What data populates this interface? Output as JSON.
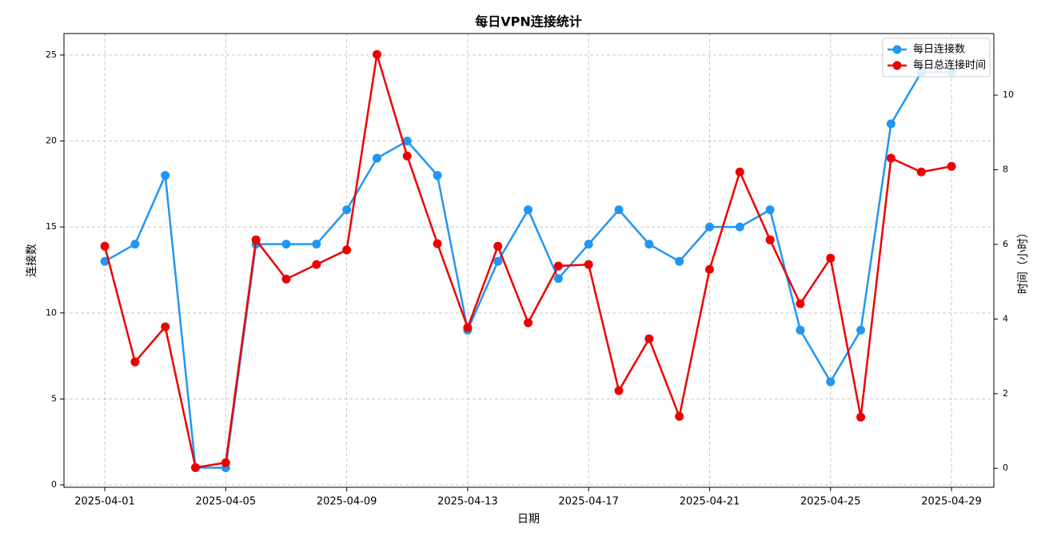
{
  "chart_data": {
    "type": "line",
    "title": "每日VPN连接统计",
    "x_label": "日期",
    "y_label": "连接数",
    "y2_label": "时间（小时）",
    "x": [
      "2025-04-01",
      "2025-04-02",
      "2025-04-03",
      "2025-04-04",
      "2025-04-05",
      "2025-04-06",
      "2025-04-07",
      "2025-04-08",
      "2025-04-09",
      "2025-04-10",
      "2025-04-11",
      "2025-04-12",
      "2025-04-13",
      "2025-04-14",
      "2025-04-15",
      "2025-04-16",
      "2025-04-17",
      "2025-04-18",
      "2025-04-19",
      "2025-04-20",
      "2025-04-21",
      "2025-04-22",
      "2025-04-23",
      "2025-04-24",
      "2025-04-25",
      "2025-04-26",
      "2025-04-27",
      "2025-04-28",
      "2025-04-29"
    ],
    "series": [
      {
        "name": "每日连接数",
        "color": "#2196f3",
        "values": [
          13,
          14,
          18,
          1,
          1,
          14,
          14,
          14,
          16,
          19,
          20,
          18,
          9,
          13,
          16,
          12,
          14,
          16,
          14,
          13,
          15,
          15,
          16,
          9,
          6,
          9,
          21,
          24,
          24
        ]
      },
      {
        "name": "每日总连接时间",
        "color": "#ee0000",
        "axis": "y2",
        "values": [
          5.95,
          2.85,
          3.79,
          0.02,
          0.15,
          6.12,
          5.07,
          5.46,
          5.85,
          11.09,
          8.37,
          6.02,
          3.77,
          5.95,
          3.9,
          5.42,
          5.46,
          2.08,
          3.47,
          1.39,
          5.33,
          7.94,
          6.12,
          4.41,
          5.63,
          1.37,
          8.31,
          7.94,
          8.09
        ]
      }
    ],
    "xlim": [
      "2025-03-30T15:36:00Z",
      "2025-04-30T09:36:00Z"
    ],
    "xticks": [
      "2025-04-01",
      "2025-04-05",
      "2025-04-09",
      "2025-04-13",
      "2025-04-17",
      "2025-04-21",
      "2025-04-25",
      "2025-04-29"
    ],
    "ylim": [
      -0.14,
      26.25
    ],
    "yticks": [
      0,
      5,
      10,
      15,
      20,
      25
    ],
    "y2lim": [
      -0.51,
      11.65
    ],
    "y2ticks": [
      0,
      2,
      4,
      6,
      8,
      10
    ],
    "grid": true,
    "legend": "upper right"
  }
}
